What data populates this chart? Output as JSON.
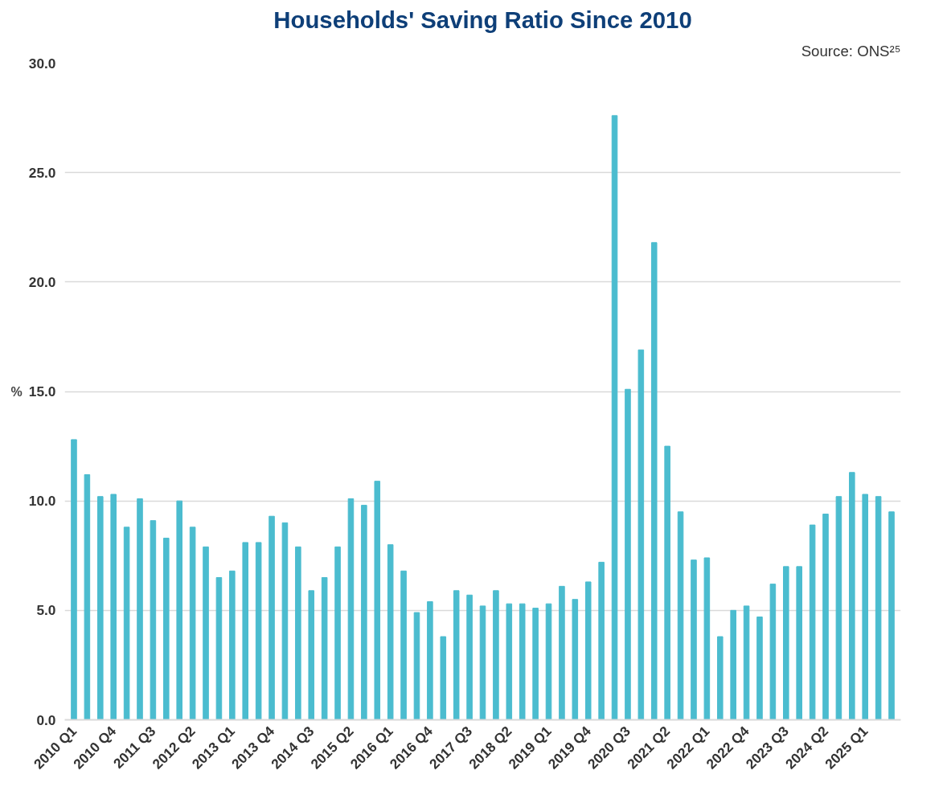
{
  "chart_data": {
    "type": "bar",
    "title": "Households' Saving Ratio Since 2010",
    "ylabel": "%",
    "annotations": [
      "Source: ONS²⁵"
    ],
    "categories": [
      "2010 Q1",
      null,
      null,
      "2010 Q4",
      null,
      null,
      "2011 Q3",
      null,
      null,
      "2012 Q2",
      null,
      null,
      "2013 Q1",
      null,
      null,
      "2013 Q4",
      null,
      null,
      "2014 Q3",
      null,
      null,
      "2015 Q2",
      null,
      null,
      "2016 Q1",
      null,
      null,
      "2016 Q4",
      null,
      null,
      "2017 Q3",
      null,
      null,
      "2018 Q2",
      null,
      null,
      "2019 Q1",
      null,
      null,
      "2019 Q4",
      null,
      null,
      "2020 Q3",
      null,
      null,
      "2021 Q2",
      null,
      null,
      "2022 Q1",
      null,
      null,
      "2022 Q4",
      null,
      null,
      "2023 Q3",
      null,
      null,
      "2024 Q2",
      null,
      null,
      "2025 Q1",
      null,
      null
    ],
    "values": [
      12.8,
      11.2,
      10.2,
      10.3,
      8.8,
      10.1,
      9.1,
      8.3,
      10.0,
      8.8,
      7.9,
      6.5,
      6.8,
      8.1,
      8.1,
      9.3,
      9.0,
      7.9,
      5.9,
      6.5,
      7.9,
      10.1,
      9.8,
      10.9,
      8.0,
      6.8,
      4.9,
      5.4,
      3.8,
      5.9,
      5.7,
      5.2,
      5.9,
      5.3,
      5.3,
      5.1,
      5.3,
      6.1,
      5.5,
      6.3,
      7.2,
      27.6,
      15.1,
      16.9,
      21.8,
      12.5,
      9.5,
      7.3,
      7.4,
      3.8,
      5.0,
      5.2,
      4.7,
      6.2,
      7.0,
      7.0,
      8.9,
      9.4,
      10.2,
      11.3,
      10.3,
      10.2,
      9.5
    ],
    "color": "#4bbccf",
    "ylim": [
      0,
      30
    ],
    "yticks": [
      {
        "value": 0,
        "label": "0.0"
      },
      {
        "value": 5,
        "label": "5.0"
      },
      {
        "value": 10,
        "label": "10.0"
      },
      {
        "value": 15,
        "label": "15.0"
      },
      {
        "value": 20,
        "label": "20.0"
      },
      {
        "value": 25,
        "label": "25.0"
      },
      {
        "value": 30,
        "label": "30.0"
      }
    ],
    "grid": "y"
  }
}
